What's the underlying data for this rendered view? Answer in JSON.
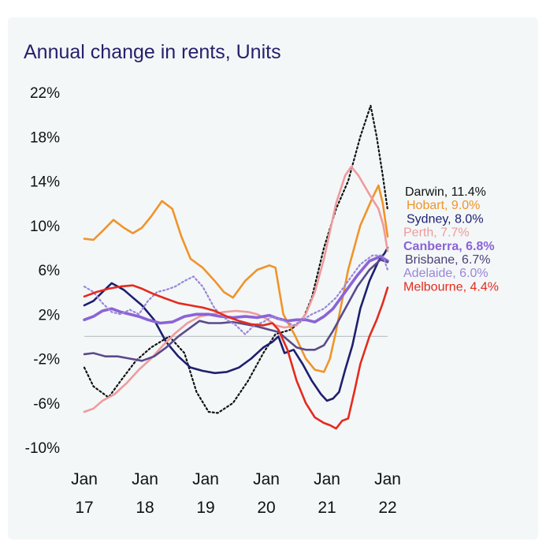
{
  "chart_data": {
    "type": "line",
    "title": "Annual change in rents, Units",
    "xlabel": "",
    "ylabel": "",
    "x_range": [
      2017.0,
      2022.0
    ],
    "ylim": [
      -10,
      22
    ],
    "y_ticks": [
      -10,
      -6,
      -2,
      2,
      6,
      10,
      14,
      18,
      22
    ],
    "y_tick_labels": [
      "-10%",
      "-6%",
      "-2%",
      "2%",
      "6%",
      "10%",
      "14%",
      "18%",
      "22%"
    ],
    "x_ticks": [
      {
        "x": 2017.0,
        "line1": "Jan",
        "line2": "17"
      },
      {
        "x": 2018.0,
        "line1": "Jan",
        "line2": "18"
      },
      {
        "x": 2019.0,
        "line1": "Jan",
        "line2": "19"
      },
      {
        "x": 2020.0,
        "line1": "Jan",
        "line2": "20"
      },
      {
        "x": 2021.0,
        "line1": "Jan",
        "line2": "21"
      },
      {
        "x": 2022.0,
        "line1": "Jan",
        "line2": "22"
      }
    ],
    "zero_line": true,
    "legend_position": "right, end of lines",
    "series": [
      {
        "name": "Darwin",
        "label": "Darwin, 11.4%",
        "final": 11.4,
        "color": "#111111",
        "style": "dotted",
        "bold": false,
        "points": [
          [
            2017.0,
            -2.8
          ],
          [
            2017.15,
            -4.5
          ],
          [
            2017.4,
            -5.5
          ],
          [
            2017.6,
            -4.0
          ],
          [
            2017.85,
            -2.2
          ],
          [
            2018.1,
            -1.0
          ],
          [
            2018.4,
            0.0
          ],
          [
            2018.65,
            -1.5
          ],
          [
            2018.85,
            -5.0
          ],
          [
            2019.05,
            -6.8
          ],
          [
            2019.2,
            -6.9
          ],
          [
            2019.45,
            -6.0
          ],
          [
            2019.7,
            -4.0
          ],
          [
            2019.95,
            -1.5
          ],
          [
            2020.15,
            0.2
          ],
          [
            2020.4,
            0.6
          ],
          [
            2020.6,
            1.5
          ],
          [
            2020.75,
            3.5
          ],
          [
            2020.95,
            8.0
          ],
          [
            2021.15,
            11.5
          ],
          [
            2021.35,
            14.0
          ],
          [
            2021.55,
            18.0
          ],
          [
            2021.72,
            20.8
          ],
          [
            2021.82,
            18.0
          ],
          [
            2021.92,
            14.5
          ],
          [
            2022.0,
            11.4
          ]
        ]
      },
      {
        "name": "Hobart",
        "label": "Hobart, 9.0%",
        "final": 9.0,
        "color": "#f0942a",
        "style": "solid",
        "bold": false,
        "points": [
          [
            2017.0,
            8.8
          ],
          [
            2017.15,
            8.7
          ],
          [
            2017.3,
            9.5
          ],
          [
            2017.48,
            10.5
          ],
          [
            2017.65,
            9.8
          ],
          [
            2017.8,
            9.3
          ],
          [
            2017.95,
            9.8
          ],
          [
            2018.1,
            10.8
          ],
          [
            2018.28,
            12.2
          ],
          [
            2018.45,
            11.5
          ],
          [
            2018.6,
            9.0
          ],
          [
            2018.75,
            7.0
          ],
          [
            2018.95,
            6.2
          ],
          [
            2019.15,
            5.0
          ],
          [
            2019.3,
            4.0
          ],
          [
            2019.45,
            3.5
          ],
          [
            2019.65,
            5.0
          ],
          [
            2019.85,
            6.0
          ],
          [
            2020.05,
            6.4
          ],
          [
            2020.15,
            6.2
          ],
          [
            2020.28,
            2.0
          ],
          [
            2020.48,
            0.0
          ],
          [
            2020.65,
            -2.0
          ],
          [
            2020.8,
            -3.0
          ],
          [
            2020.95,
            -3.2
          ],
          [
            2021.05,
            -2.0
          ],
          [
            2021.15,
            0.5
          ],
          [
            2021.35,
            6.0
          ],
          [
            2021.55,
            10.0
          ],
          [
            2021.75,
            12.5
          ],
          [
            2021.85,
            13.6
          ],
          [
            2021.92,
            12.0
          ],
          [
            2022.0,
            9.0
          ]
        ]
      },
      {
        "name": "Sydney",
        "label": "Sydney, 8.0%",
        "final": 8.0,
        "color": "#1e1f6e",
        "style": "solid",
        "bold": false,
        "points": [
          [
            2017.0,
            2.8
          ],
          [
            2017.15,
            3.2
          ],
          [
            2017.3,
            4.0
          ],
          [
            2017.45,
            4.8
          ],
          [
            2017.65,
            4.2
          ],
          [
            2017.8,
            3.5
          ],
          [
            2017.95,
            2.8
          ],
          [
            2018.15,
            1.5
          ],
          [
            2018.35,
            -0.5
          ],
          [
            2018.55,
            -1.8
          ],
          [
            2018.75,
            -2.8
          ],
          [
            2018.95,
            -3.1
          ],
          [
            2019.15,
            -3.3
          ],
          [
            2019.35,
            -3.2
          ],
          [
            2019.55,
            -2.8
          ],
          [
            2019.75,
            -2.0
          ],
          [
            2019.95,
            -1.0
          ],
          [
            2020.1,
            -0.5
          ],
          [
            2020.2,
            0.0
          ],
          [
            2020.3,
            -1.5
          ],
          [
            2020.45,
            -1.2
          ],
          [
            2020.6,
            -2.5
          ],
          [
            2020.75,
            -4.0
          ],
          [
            2020.9,
            -5.2
          ],
          [
            2021.0,
            -5.8
          ],
          [
            2021.1,
            -5.6
          ],
          [
            2021.2,
            -5.0
          ],
          [
            2021.3,
            -3.0
          ],
          [
            2021.42,
            -0.8
          ],
          [
            2021.55,
            2.5
          ],
          [
            2021.7,
            5.0
          ],
          [
            2021.85,
            6.8
          ],
          [
            2021.95,
            7.5
          ],
          [
            2022.0,
            8.0
          ]
        ]
      },
      {
        "name": "Perth",
        "label": "Perth, 7.7%",
        "final": 7.7,
        "color": "#f09a9c",
        "style": "solid",
        "bold": false,
        "points": [
          [
            2017.0,
            -6.8
          ],
          [
            2017.15,
            -6.5
          ],
          [
            2017.3,
            -5.8
          ],
          [
            2017.5,
            -5.2
          ],
          [
            2017.7,
            -4.2
          ],
          [
            2017.9,
            -3.0
          ],
          [
            2018.1,
            -2.0
          ],
          [
            2018.3,
            -0.8
          ],
          [
            2018.5,
            0.3
          ],
          [
            2018.7,
            1.2
          ],
          [
            2018.9,
            1.8
          ],
          [
            2019.1,
            2.0
          ],
          [
            2019.3,
            2.2
          ],
          [
            2019.5,
            2.3
          ],
          [
            2019.7,
            2.2
          ],
          [
            2019.85,
            2.0
          ],
          [
            2020.0,
            1.6
          ],
          [
            2020.15,
            1.0
          ],
          [
            2020.3,
            0.8
          ],
          [
            2020.5,
            1.0
          ],
          [
            2020.65,
            2.0
          ],
          [
            2020.8,
            4.0
          ],
          [
            2020.95,
            7.0
          ],
          [
            2021.15,
            12.0
          ],
          [
            2021.3,
            14.5
          ],
          [
            2021.4,
            15.3
          ],
          [
            2021.52,
            14.5
          ],
          [
            2021.7,
            12.8
          ],
          [
            2021.85,
            11.5
          ],
          [
            2021.93,
            10.0
          ],
          [
            2022.0,
            7.7
          ]
        ]
      },
      {
        "name": "Canberra",
        "label": "Canberra, 6.8%",
        "final": 6.8,
        "color": "#8b63d6",
        "style": "solid",
        "bold": true,
        "points": [
          [
            2017.0,
            1.5
          ],
          [
            2017.15,
            1.8
          ],
          [
            2017.3,
            2.3
          ],
          [
            2017.45,
            2.5
          ],
          [
            2017.6,
            2.2
          ],
          [
            2017.75,
            2.0
          ],
          [
            2017.9,
            1.8
          ],
          [
            2018.05,
            1.5
          ],
          [
            2018.25,
            1.2
          ],
          [
            2018.45,
            1.3
          ],
          [
            2018.65,
            1.8
          ],
          [
            2018.85,
            2.0
          ],
          [
            2019.05,
            2.0
          ],
          [
            2019.25,
            1.8
          ],
          [
            2019.45,
            1.7
          ],
          [
            2019.65,
            1.8
          ],
          [
            2019.85,
            1.7
          ],
          [
            2020.05,
            1.9
          ],
          [
            2020.2,
            1.6
          ],
          [
            2020.35,
            1.4
          ],
          [
            2020.5,
            1.5
          ],
          [
            2020.65,
            1.5
          ],
          [
            2020.8,
            1.3
          ],
          [
            2020.95,
            1.8
          ],
          [
            2021.1,
            2.5
          ],
          [
            2021.3,
            4.0
          ],
          [
            2021.5,
            5.5
          ],
          [
            2021.7,
            6.8
          ],
          [
            2021.88,
            7.2
          ],
          [
            2022.0,
            6.8
          ]
        ]
      },
      {
        "name": "Brisbane",
        "label": "Brisbane, 6.7%",
        "final": 6.7,
        "color": "#5a4a8a",
        "style": "solid",
        "bold": false,
        "points": [
          [
            2017.0,
            -1.6
          ],
          [
            2017.15,
            -1.5
          ],
          [
            2017.35,
            -1.8
          ],
          [
            2017.55,
            -1.8
          ],
          [
            2017.75,
            -2.0
          ],
          [
            2017.95,
            -2.2
          ],
          [
            2018.15,
            -1.8
          ],
          [
            2018.35,
            -1.0
          ],
          [
            2018.55,
            0.0
          ],
          [
            2018.75,
            0.8
          ],
          [
            2018.9,
            1.4
          ],
          [
            2019.05,
            1.2
          ],
          [
            2019.25,
            1.2
          ],
          [
            2019.45,
            1.3
          ],
          [
            2019.65,
            1.1
          ],
          [
            2019.85,
            0.9
          ],
          [
            2020.05,
            0.6
          ],
          [
            2020.2,
            0.4
          ],
          [
            2020.35,
            -0.3
          ],
          [
            2020.5,
            -1.0
          ],
          [
            2020.65,
            -1.2
          ],
          [
            2020.8,
            -1.2
          ],
          [
            2020.95,
            -0.8
          ],
          [
            2021.1,
            0.5
          ],
          [
            2021.3,
            2.5
          ],
          [
            2021.5,
            4.5
          ],
          [
            2021.7,
            6.0
          ],
          [
            2021.88,
            6.9
          ],
          [
            2022.0,
            6.7
          ]
        ]
      },
      {
        "name": "Adelaide",
        "label": "Adelaide, 6.0%",
        "final": 6.0,
        "color": "#9a86d8",
        "style": "dotted",
        "bold": false,
        "points": [
          [
            2017.0,
            4.5
          ],
          [
            2017.15,
            4.0
          ],
          [
            2017.3,
            3.0
          ],
          [
            2017.45,
            2.2
          ],
          [
            2017.6,
            2.0
          ],
          [
            2017.75,
            2.4
          ],
          [
            2017.9,
            2.0
          ],
          [
            2018.05,
            3.2
          ],
          [
            2018.2,
            4.0
          ],
          [
            2018.35,
            4.2
          ],
          [
            2018.5,
            4.5
          ],
          [
            2018.65,
            5.0
          ],
          [
            2018.8,
            5.4
          ],
          [
            2018.95,
            4.5
          ],
          [
            2019.15,
            2.5
          ],
          [
            2019.35,
            1.5
          ],
          [
            2019.5,
            1.0
          ],
          [
            2019.65,
            0.2
          ],
          [
            2019.8,
            1.0
          ],
          [
            2019.95,
            1.3
          ],
          [
            2020.1,
            1.8
          ],
          [
            2020.25,
            1.5
          ],
          [
            2020.45,
            1.0
          ],
          [
            2020.6,
            1.5
          ],
          [
            2020.75,
            2.0
          ],
          [
            2020.95,
            2.5
          ],
          [
            2021.15,
            3.5
          ],
          [
            2021.35,
            5.0
          ],
          [
            2021.55,
            6.5
          ],
          [
            2021.75,
            7.3
          ],
          [
            2021.92,
            7.3
          ],
          [
            2022.0,
            6.0
          ]
        ]
      },
      {
        "name": "Melbourne",
        "label": "Melbourne, 4.4%",
        "final": 4.4,
        "color": "#e52a1e",
        "style": "solid",
        "bold": false,
        "points": [
          [
            2017.0,
            3.6
          ],
          [
            2017.2,
            4.0
          ],
          [
            2017.4,
            4.3
          ],
          [
            2017.6,
            4.5
          ],
          [
            2017.8,
            4.6
          ],
          [
            2017.95,
            4.3
          ],
          [
            2018.15,
            3.8
          ],
          [
            2018.35,
            3.4
          ],
          [
            2018.55,
            3.0
          ],
          [
            2018.75,
            2.8
          ],
          [
            2018.95,
            2.6
          ],
          [
            2019.15,
            2.3
          ],
          [
            2019.35,
            1.8
          ],
          [
            2019.55,
            1.4
          ],
          [
            2019.75,
            1.1
          ],
          [
            2019.95,
            1.0
          ],
          [
            2020.1,
            1.2
          ],
          [
            2020.2,
            0.6
          ],
          [
            2020.35,
            -1.2
          ],
          [
            2020.5,
            -4.0
          ],
          [
            2020.65,
            -6.0
          ],
          [
            2020.8,
            -7.3
          ],
          [
            2020.95,
            -7.8
          ],
          [
            2021.05,
            -8.0
          ],
          [
            2021.15,
            -8.3
          ],
          [
            2021.25,
            -7.6
          ],
          [
            2021.35,
            -7.4
          ],
          [
            2021.45,
            -5.0
          ],
          [
            2021.55,
            -2.5
          ],
          [
            2021.7,
            0.0
          ],
          [
            2021.82,
            1.5
          ],
          [
            2021.92,
            3.0
          ],
          [
            2022.0,
            4.4
          ]
        ]
      }
    ]
  }
}
